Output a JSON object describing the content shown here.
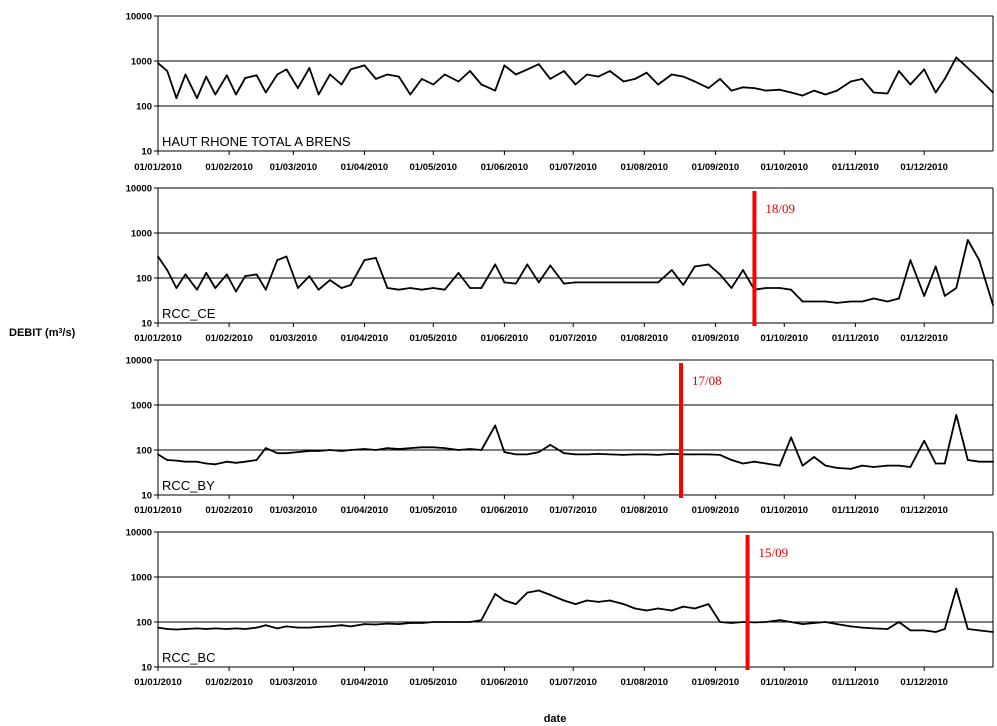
{
  "figure": {
    "ylabel": "DEBIT (m",
    "ylabel_sup": "3",
    "ylabel_tail": "/s)",
    "xlabel": "date"
  },
  "chart_data": [
    {
      "type": "line",
      "label": "HAUT RHONE TOTAL A BRENS",
      "yscale": "log",
      "ylim": [
        10,
        10000
      ],
      "yticks": [
        "10",
        "100",
        "1000",
        "10000"
      ],
      "xlim": [
        "2010-01-01",
        "2010-12-31"
      ],
      "xticks": [
        "01/01/2010",
        "01/02/2010",
        "01/03/2010",
        "01/04/2010",
        "01/05/2010",
        "01/06/2010",
        "01/07/2010",
        "01/08/2010",
        "01/09/2010",
        "01/10/2010",
        "01/11/2010",
        "01/12/2010"
      ],
      "grid": "horizontal",
      "color": "#000000",
      "x": [
        "2010-01-01",
        "2010-01-05",
        "2010-01-09",
        "2010-01-13",
        "2010-01-18",
        "2010-01-22",
        "2010-01-26",
        "2010-01-31",
        "2010-02-04",
        "2010-02-08",
        "2010-02-13",
        "2010-02-17",
        "2010-02-22",
        "2010-02-26",
        "2010-03-03",
        "2010-03-08",
        "2010-03-12",
        "2010-03-17",
        "2010-03-22",
        "2010-03-26",
        "2010-04-01",
        "2010-04-06",
        "2010-04-11",
        "2010-04-16",
        "2010-04-21",
        "2010-04-26",
        "2010-05-01",
        "2010-05-06",
        "2010-05-12",
        "2010-05-17",
        "2010-05-22",
        "2010-05-28",
        "2010-06-01",
        "2010-06-06",
        "2010-06-11",
        "2010-06-16",
        "2010-06-21",
        "2010-06-27",
        "2010-07-02",
        "2010-07-07",
        "2010-07-12",
        "2010-07-17",
        "2010-07-23",
        "2010-07-28",
        "2010-08-02",
        "2010-08-07",
        "2010-08-13",
        "2010-08-18",
        "2010-08-23",
        "2010-08-29",
        "2010-09-03",
        "2010-09-08",
        "2010-09-13",
        "2010-09-18",
        "2010-09-23",
        "2010-09-29",
        "2010-10-04",
        "2010-10-09",
        "2010-10-14",
        "2010-10-19",
        "2010-10-24",
        "2010-10-30",
        "2010-11-04",
        "2010-11-09",
        "2010-11-15",
        "2010-11-20",
        "2010-11-25",
        "2010-12-01",
        "2010-12-06",
        "2010-12-10",
        "2010-12-15",
        "2010-12-20",
        "2010-12-25",
        "2010-12-31"
      ],
      "values": [
        900,
        600,
        150,
        500,
        150,
        450,
        180,
        480,
        180,
        420,
        480,
        200,
        500,
        650,
        250,
        700,
        180,
        500,
        300,
        650,
        800,
        400,
        500,
        450,
        180,
        400,
        300,
        500,
        350,
        600,
        300,
        220,
        800,
        500,
        650,
        850,
        400,
        600,
        300,
        500,
        450,
        600,
        350,
        400,
        550,
        300,
        500,
        450,
        350,
        250,
        400,
        220,
        260,
        250,
        220,
        230,
        200,
        170,
        220,
        180,
        220,
        350,
        400,
        200,
        190,
        600,
        300,
        650,
        200,
        400,
        1200,
        700,
        400,
        200
      ],
      "annotation": null
    },
    {
      "type": "line",
      "label": "RCC_CE",
      "yscale": "log",
      "ylim": [
        10,
        10000
      ],
      "yticks": [
        "10",
        "100",
        "1000",
        "10000"
      ],
      "xlim": [
        "2010-01-01",
        "2010-12-31"
      ],
      "xticks": [
        "01/01/2010",
        "01/02/2010",
        "01/03/2010",
        "01/04/2010",
        "01/05/2010",
        "01/06/2010",
        "01/07/2010",
        "01/08/2010",
        "01/09/2010",
        "01/10/2010",
        "01/11/2010",
        "01/12/2010"
      ],
      "grid": "horizontal",
      "color": "#000000",
      "x": [
        "2010-01-01",
        "2010-01-05",
        "2010-01-09",
        "2010-01-13",
        "2010-01-18",
        "2010-01-22",
        "2010-01-26",
        "2010-01-31",
        "2010-02-04",
        "2010-02-08",
        "2010-02-13",
        "2010-02-17",
        "2010-02-22",
        "2010-02-26",
        "2010-03-03",
        "2010-03-08",
        "2010-03-12",
        "2010-03-17",
        "2010-03-22",
        "2010-03-26",
        "2010-04-01",
        "2010-04-06",
        "2010-04-11",
        "2010-04-16",
        "2010-04-21",
        "2010-04-26",
        "2010-05-01",
        "2010-05-06",
        "2010-05-12",
        "2010-05-17",
        "2010-05-22",
        "2010-05-28",
        "2010-06-01",
        "2010-06-06",
        "2010-06-11",
        "2010-06-16",
        "2010-06-21",
        "2010-06-27",
        "2010-07-02",
        "2010-07-07",
        "2010-07-12",
        "2010-07-17",
        "2010-07-23",
        "2010-07-28",
        "2010-08-02",
        "2010-08-07",
        "2010-08-13",
        "2010-08-18",
        "2010-08-23",
        "2010-08-29",
        "2010-09-03",
        "2010-09-08",
        "2010-09-13",
        "2010-09-18",
        "2010-09-23",
        "2010-09-29",
        "2010-10-04",
        "2010-10-09",
        "2010-10-14",
        "2010-10-19",
        "2010-10-24",
        "2010-10-30",
        "2010-11-04",
        "2010-11-09",
        "2010-11-15",
        "2010-11-20",
        "2010-11-25",
        "2010-12-01",
        "2010-12-06",
        "2010-12-10",
        "2010-12-15",
        "2010-12-20",
        "2010-12-25",
        "2010-12-31"
      ],
      "values": [
        300,
        150,
        60,
        120,
        55,
        130,
        60,
        120,
        50,
        110,
        120,
        55,
        250,
        300,
        60,
        110,
        55,
        90,
        60,
        70,
        250,
        280,
        60,
        55,
        60,
        55,
        60,
        55,
        130,
        60,
        60,
        200,
        80,
        75,
        200,
        80,
        190,
        75,
        80,
        80,
        80,
        80,
        80,
        80,
        80,
        80,
        150,
        70,
        180,
        200,
        120,
        60,
        150,
        55,
        60,
        60,
        55,
        30,
        30,
        30,
        28,
        30,
        30,
        35,
        30,
        35,
        250,
        40,
        180,
        40,
        60,
        700,
        250,
        25
      ],
      "annotation": {
        "date": "2010-09-18",
        "label": "18/09",
        "color": "#ff0000"
      }
    },
    {
      "type": "line",
      "label": "RCC_BY",
      "yscale": "log",
      "ylim": [
        10,
        10000
      ],
      "yticks": [
        "10",
        "100",
        "1000",
        "10000"
      ],
      "xlim": [
        "2010-01-01",
        "2010-12-31"
      ],
      "xticks": [
        "01/01/2010",
        "01/02/2010",
        "01/03/2010",
        "01/04/2010",
        "01/05/2010",
        "01/06/2010",
        "01/07/2010",
        "01/08/2010",
        "01/09/2010",
        "01/10/2010",
        "01/11/2010",
        "01/12/2010"
      ],
      "grid": "horizontal",
      "color": "#000000",
      "x": [
        "2010-01-01",
        "2010-01-05",
        "2010-01-09",
        "2010-01-13",
        "2010-01-18",
        "2010-01-22",
        "2010-01-26",
        "2010-01-31",
        "2010-02-04",
        "2010-02-08",
        "2010-02-13",
        "2010-02-17",
        "2010-02-22",
        "2010-02-26",
        "2010-03-03",
        "2010-03-08",
        "2010-03-12",
        "2010-03-17",
        "2010-03-22",
        "2010-03-26",
        "2010-04-01",
        "2010-04-06",
        "2010-04-11",
        "2010-04-16",
        "2010-04-21",
        "2010-04-26",
        "2010-05-01",
        "2010-05-06",
        "2010-05-12",
        "2010-05-17",
        "2010-05-22",
        "2010-05-28",
        "2010-06-01",
        "2010-06-06",
        "2010-06-11",
        "2010-06-16",
        "2010-06-21",
        "2010-06-27",
        "2010-07-02",
        "2010-07-07",
        "2010-07-12",
        "2010-07-17",
        "2010-07-23",
        "2010-07-28",
        "2010-08-02",
        "2010-08-07",
        "2010-08-13",
        "2010-08-18",
        "2010-08-23",
        "2010-08-29",
        "2010-09-03",
        "2010-09-08",
        "2010-09-13",
        "2010-09-18",
        "2010-09-23",
        "2010-09-29",
        "2010-10-04",
        "2010-10-09",
        "2010-10-14",
        "2010-10-19",
        "2010-10-24",
        "2010-10-30",
        "2010-11-04",
        "2010-11-09",
        "2010-11-15",
        "2010-11-20",
        "2010-11-25",
        "2010-12-01",
        "2010-12-06",
        "2010-12-10",
        "2010-12-15",
        "2010-12-20",
        "2010-12-25",
        "2010-12-31"
      ],
      "values": [
        80,
        60,
        58,
        55,
        55,
        50,
        48,
        55,
        52,
        55,
        60,
        110,
        85,
        85,
        90,
        95,
        95,
        100,
        95,
        100,
        105,
        100,
        110,
        105,
        110,
        115,
        115,
        110,
        100,
        105,
        100,
        350,
        90,
        80,
        80,
        90,
        130,
        85,
        80,
        80,
        82,
        80,
        78,
        80,
        80,
        78,
        82,
        80,
        80,
        80,
        78,
        60,
        50,
        55,
        50,
        45,
        190,
        45,
        70,
        45,
        40,
        38,
        45,
        42,
        45,
        45,
        42,
        160,
        50,
        50,
        600,
        60,
        55,
        55
      ],
      "annotation": {
        "date": "2010-08-17",
        "label": "17/08",
        "color": "#ff0000"
      }
    },
    {
      "type": "line",
      "label": "RCC_BC",
      "yscale": "log",
      "ylim": [
        10,
        10000
      ],
      "yticks": [
        "10",
        "100",
        "1000",
        "10000"
      ],
      "xlim": [
        "2010-01-01",
        "2010-12-31"
      ],
      "xticks": [
        "01/01/2010",
        "01/02/2010",
        "01/03/2010",
        "01/04/2010",
        "01/05/2010",
        "01/06/2010",
        "01/07/2010",
        "01/08/2010",
        "01/09/2010",
        "01/10/2010",
        "01/11/2010",
        "01/12/2010"
      ],
      "grid": "horizontal",
      "color": "#000000",
      "x": [
        "2010-01-01",
        "2010-01-05",
        "2010-01-09",
        "2010-01-13",
        "2010-01-18",
        "2010-01-22",
        "2010-01-26",
        "2010-01-31",
        "2010-02-04",
        "2010-02-08",
        "2010-02-13",
        "2010-02-17",
        "2010-02-22",
        "2010-02-26",
        "2010-03-03",
        "2010-03-08",
        "2010-03-12",
        "2010-03-17",
        "2010-03-22",
        "2010-03-26",
        "2010-04-01",
        "2010-04-06",
        "2010-04-11",
        "2010-04-16",
        "2010-04-21",
        "2010-04-26",
        "2010-05-01",
        "2010-05-06",
        "2010-05-12",
        "2010-05-17",
        "2010-05-22",
        "2010-05-28",
        "2010-06-01",
        "2010-06-06",
        "2010-06-11",
        "2010-06-16",
        "2010-06-21",
        "2010-06-27",
        "2010-07-02",
        "2010-07-07",
        "2010-07-12",
        "2010-07-17",
        "2010-07-23",
        "2010-07-28",
        "2010-08-02",
        "2010-08-07",
        "2010-08-13",
        "2010-08-18",
        "2010-08-23",
        "2010-08-29",
        "2010-09-03",
        "2010-09-08",
        "2010-09-13",
        "2010-09-18",
        "2010-09-23",
        "2010-09-29",
        "2010-10-04",
        "2010-10-09",
        "2010-10-14",
        "2010-10-19",
        "2010-10-24",
        "2010-10-30",
        "2010-11-04",
        "2010-11-09",
        "2010-11-15",
        "2010-11-20",
        "2010-11-25",
        "2010-12-01",
        "2010-12-06",
        "2010-12-10",
        "2010-12-15",
        "2010-12-20",
        "2010-12-25",
        "2010-12-31"
      ],
      "values": [
        75,
        70,
        68,
        70,
        72,
        70,
        72,
        70,
        72,
        70,
        75,
        85,
        72,
        80,
        75,
        75,
        78,
        80,
        85,
        80,
        90,
        88,
        92,
        90,
        95,
        95,
        100,
        100,
        100,
        100,
        110,
        420,
        300,
        250,
        450,
        500,
        400,
        300,
        250,
        300,
        280,
        300,
        250,
        200,
        180,
        200,
        180,
        220,
        200,
        250,
        100,
        95,
        100,
        98,
        100,
        110,
        100,
        90,
        95,
        100,
        90,
        80,
        75,
        72,
        70,
        100,
        65,
        65,
        60,
        70,
        550,
        70,
        65,
        60
      ],
      "annotation": {
        "date": "2010-09-15",
        "label": "15/09",
        "color": "#ff0000"
      }
    }
  ]
}
